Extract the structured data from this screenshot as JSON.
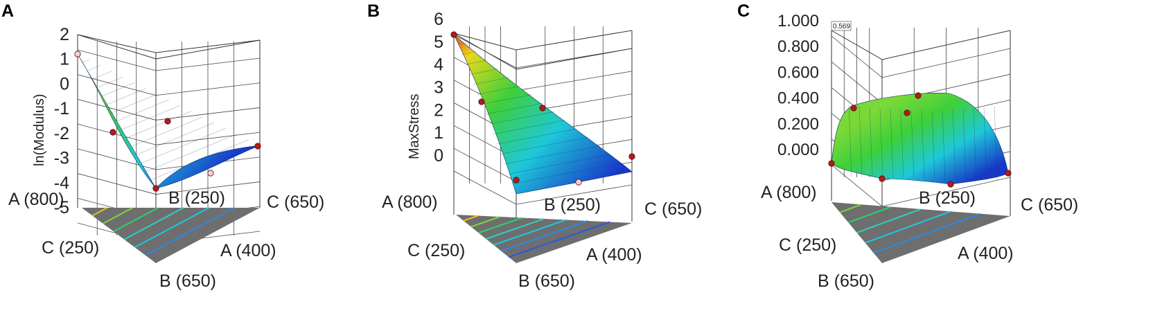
{
  "colors": {
    "surface_high": "#e8461c",
    "surface_mid_high": "#e8d81c",
    "surface_mid": "#3ed03a",
    "surface_low": "#1ec8d8",
    "surface_lowest": "#1838c8",
    "point_fill": "#b01c1c",
    "point_below_fill": "#f5d0d0",
    "grid": "#333333",
    "floor": "#6e6e6e"
  },
  "chart_data": [
    {
      "type": "surface3d",
      "panel_label": "A",
      "zlabel": "ln(Modulus)",
      "z_ticks": [
        "2",
        "1",
        "0",
        "-1",
        "-2",
        "-3",
        "-4",
        "-5"
      ],
      "zlim": [
        -6,
        2
      ],
      "corners": {
        "left": "A (800)",
        "front_left": "C (250)",
        "front": "B (650)",
        "front_right": "A (400)",
        "right": "C (650)",
        "back": "B (250)"
      },
      "surface_corner_values": {
        "A": 0.2,
        "B": -5.8,
        "C": -4.9
      },
      "design_points": [
        {
          "A": 800,
          "B": 0,
          "C": 0,
          "value": 0.2,
          "below_surface": true
        },
        {
          "A": 400,
          "B": 650,
          "C": 250,
          "value": -5.8,
          "below_surface": false
        },
        {
          "A": 400,
          "B": 250,
          "C": 650,
          "value": -4.9,
          "below_surface": false
        },
        {
          "A": 600,
          "B": 450,
          "C": 250,
          "value": -3.2,
          "below_surface": false
        },
        {
          "A": 500,
          "B": 350,
          "C": 450,
          "value": -2.9,
          "below_surface": false
        },
        {
          "A": 450,
          "B": 450,
          "C": 400,
          "value": -5.6,
          "below_surface": true
        }
      ],
      "floor_contours": [
        "#e8c21c",
        "#7ad838",
        "#2ed070",
        "#2ed0c0",
        "#1ec8e8",
        "#2a88e8"
      ]
    },
    {
      "type": "surface3d",
      "panel_label": "B",
      "zlabel": "MaxStress",
      "z_ticks": [
        "6",
        "5",
        "4",
        "3",
        "2",
        "1",
        "0"
      ],
      "zlim": [
        -0.8,
        6
      ],
      "corners": {
        "left": "A (800)",
        "front_left": "C (250)",
        "front": "B (650)",
        "front_right": "A (400)",
        "right": "C (650)",
        "back": "B (250)"
      },
      "surface_corner_values": {
        "A": 5.0,
        "B": -0.6,
        "C": -0.3
      },
      "design_points": [
        {
          "A": 800,
          "B": 0,
          "C": 0,
          "value": 5.0,
          "below_surface": false
        },
        {
          "A": 400,
          "B": 650,
          "C": 250,
          "value": -0.6,
          "below_surface": false
        },
        {
          "A": 400,
          "B": 250,
          "C": 650,
          "value": -0.3,
          "below_surface": false
        },
        {
          "A": 650,
          "B": 350,
          "C": 250,
          "value": 2.9,
          "below_surface": false
        },
        {
          "A": 550,
          "B": 250,
          "C": 450,
          "value": 2.8,
          "below_surface": false
        },
        {
          "A": 450,
          "B": 450,
          "C": 400,
          "value": -0.8,
          "below_surface": true
        }
      ],
      "floor_contours": [
        "#e8c21c",
        "#7ad838",
        "#2ed070",
        "#2ed0c0",
        "#1ec8e8",
        "#2a88e8",
        "#2a58e0"
      ]
    },
    {
      "type": "surface3d",
      "panel_label": "C",
      "zlabel": "",
      "z_ticks": [
        "1.000",
        "0.800",
        "0.600",
        "0.400",
        "0.200",
        "0.000"
      ],
      "zlim": [
        -0.1,
        1.0
      ],
      "tooltip": "0.569",
      "corners": {
        "left": "A (800)",
        "front_left": "C (250)",
        "front": "B (650)",
        "front_right": "A (400)",
        "right": "C (650)",
        "back": "B (250)"
      },
      "surface_corner_values": {
        "A": 0.0,
        "B": -0.05,
        "C": -0.02
      },
      "design_points": [
        {
          "A": 800,
          "B": 0,
          "C": 0,
          "value": 0.0,
          "below_surface": false
        },
        {
          "A": 400,
          "B": 650,
          "C": 250,
          "value": -0.05,
          "below_surface": false
        },
        {
          "A": 400,
          "B": 250,
          "C": 650,
          "value": -0.02,
          "below_surface": false
        },
        {
          "A": 700,
          "B": 250,
          "C": 250,
          "value": 0.4,
          "below_surface": false
        },
        {
          "A": 550,
          "B": 300,
          "C": 400,
          "value": 0.44,
          "below_surface": false
        },
        {
          "A": 500,
          "B": 350,
          "C": 400,
          "value": 0.38,
          "below_surface": false
        },
        {
          "A": 450,
          "B": 450,
          "C": 400,
          "value": -0.08,
          "below_surface": false
        }
      ],
      "floor_contours": [
        "#7ad838",
        "#2ed070",
        "#2ed0c0",
        "#1ec8e8",
        "#2a88e8"
      ]
    }
  ]
}
